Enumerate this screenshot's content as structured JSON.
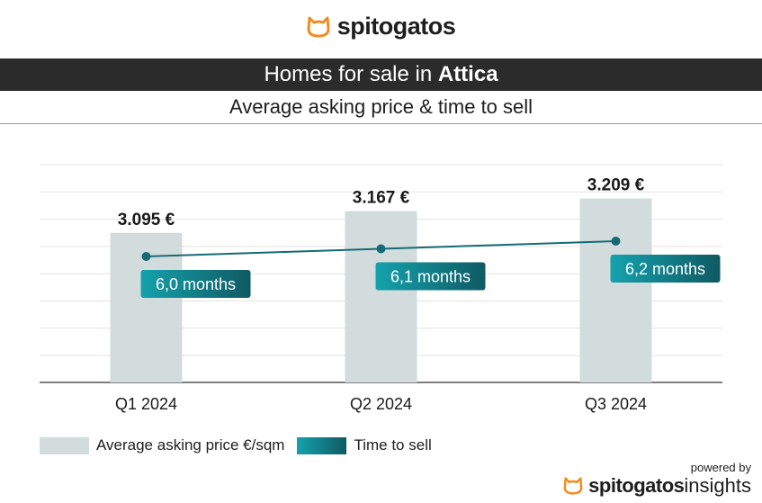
{
  "brand": {
    "name": "spitogatos",
    "powered_by": "powered by",
    "footer_brand": "spitogatos",
    "footer_suffix": "insights",
    "accent": "#f28c1e"
  },
  "banner": {
    "prefix": "Homes for sale in ",
    "region": "Attica"
  },
  "subtitle": "Average asking price & time to sell",
  "legend": {
    "bar": "Average asking price €/sqm",
    "line": "Time to sell"
  },
  "colors": {
    "bar": "#d3dcdd",
    "line": "#156b74",
    "label_start": "#14a2ad",
    "label_end": "#0f5a63"
  },
  "chart_data": {
    "type": "bar",
    "categories": [
      "Q1 2024",
      "Q2 2024",
      "Q3 2024"
    ],
    "series": [
      {
        "name": "Average asking price €/sqm",
        "type": "bar",
        "values": [
          3095,
          3167,
          3209
        ],
        "labels": [
          "3.095 €",
          "3.167 €",
          "3.209 €"
        ]
      },
      {
        "name": "Time to sell",
        "type": "line",
        "values": [
          6.0,
          6.1,
          6.2
        ],
        "labels": [
          "6,0 months",
          "6,1 months",
          "6,2 months"
        ]
      }
    ],
    "grid": true,
    "legend_position": "bottom-left"
  }
}
